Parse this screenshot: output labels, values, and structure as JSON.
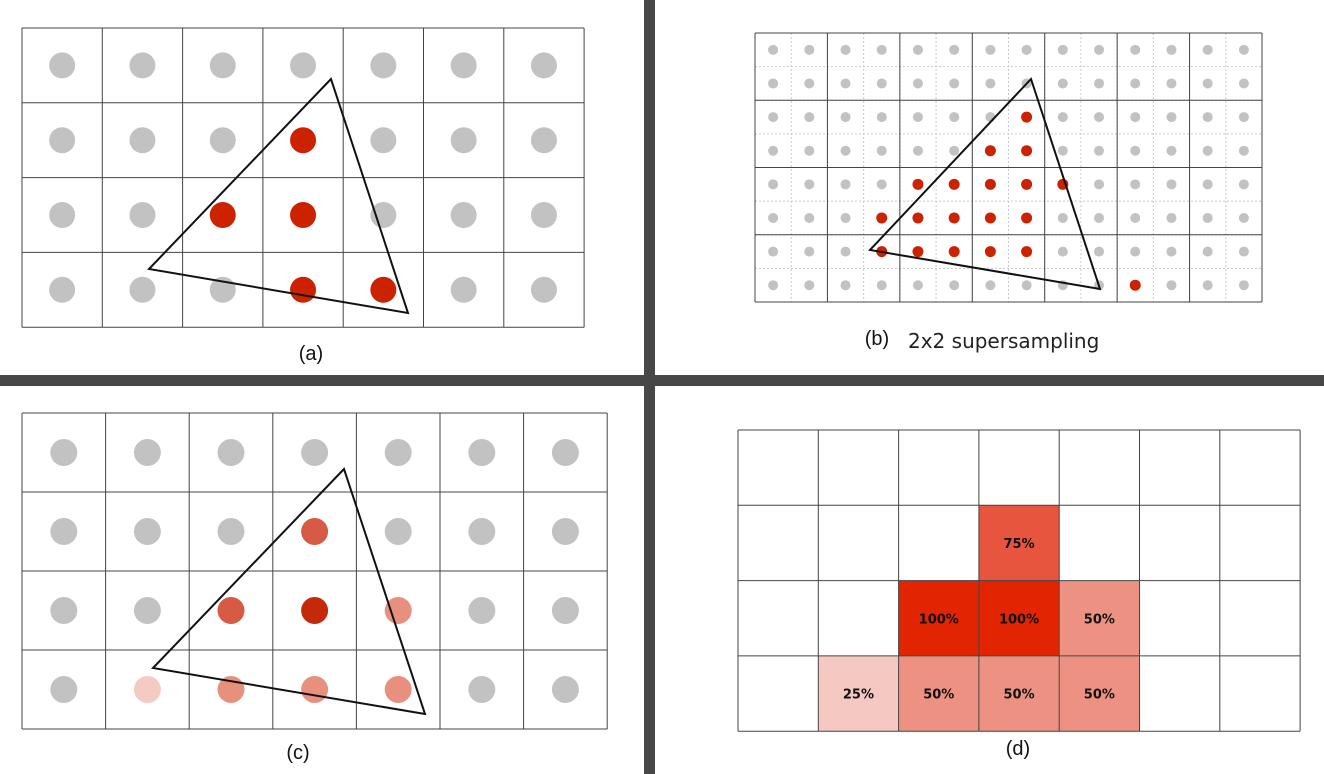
{
  "colors": {
    "divider": "#474747",
    "grid": "#444444",
    "sample_off": "#c2c2c2",
    "sample_in": "#cc2200",
    "fine_grid": "#c8c8c8"
  },
  "panels": {
    "a": {
      "caption": "(a)",
      "rows": 4,
      "cols": 7,
      "triangle_px": "vertices in pixel-cell units",
      "samples": [
        [
          "#c2c2c2",
          "#c2c2c2",
          "#c2c2c2",
          "#c2c2c2",
          "#c2c2c2",
          "#c2c2c2",
          "#c2c2c2"
        ],
        [
          "#c2c2c2",
          "#c2c2c2",
          "#c2c2c2",
          "#cc2200",
          "#c2c2c2",
          "#c2c2c2",
          "#c2c2c2"
        ],
        [
          "#c2c2c2",
          "#c2c2c2",
          "#cc2200",
          "#cc2200",
          "#c2c2c2",
          "#c2c2c2",
          "#c2c2c2"
        ],
        [
          "#c2c2c2",
          "#c2c2c2",
          "#c2c2c2",
          "#cc2200",
          "#cc2200",
          "#c2c2c2",
          "#c2c2c2"
        ]
      ]
    },
    "b": {
      "caption": "(b)",
      "subtitle": "2x2 supersampling",
      "rows": 8,
      "cols": 14,
      "red_samples": [
        [
          2,
          7
        ],
        [
          3,
          6
        ],
        [
          3,
          7
        ],
        [
          4,
          4
        ],
        [
          4,
          5
        ],
        [
          4,
          6
        ],
        [
          4,
          7
        ],
        [
          4,
          8
        ],
        [
          5,
          3
        ],
        [
          5,
          4
        ],
        [
          5,
          5
        ],
        [
          5,
          6
        ],
        [
          5,
          7
        ],
        [
          6,
          3
        ],
        [
          6,
          4
        ],
        [
          6,
          5
        ],
        [
          6,
          6
        ],
        [
          6,
          7
        ],
        [
          7,
          10
        ]
      ]
    },
    "c": {
      "caption": "(c)",
      "rows": 4,
      "cols": 7,
      "samples": [
        [
          "#c2c2c2",
          "#c2c2c2",
          "#c2c2c2",
          "#c2c2c2",
          "#c2c2c2",
          "#c2c2c2",
          "#c2c2c2"
        ],
        [
          "#c2c2c2",
          "#c2c2c2",
          "#c2c2c2",
          "#d65a44",
          "#c2c2c2",
          "#c2c2c2",
          "#c2c2c2"
        ],
        [
          "#c2c2c2",
          "#c2c2c2",
          "#d65a44",
          "#c42a0a",
          "#e8907e",
          "#c2c2c2",
          "#c2c2c2"
        ],
        [
          "#c2c2c2",
          "#f3cbc3",
          "#e8907e",
          "#e8907e",
          "#e8907e",
          "#c2c2c2",
          "#c2c2c2"
        ]
      ]
    },
    "d": {
      "caption": "(d)",
      "rows": 4,
      "cols": 7,
      "cells": [
        {
          "row": 1,
          "col": 3,
          "label": "75%",
          "coverage": 0.75,
          "color": "#e8553e"
        },
        {
          "row": 2,
          "col": 2,
          "label": "100%",
          "coverage": 1.0,
          "color": "#e22500"
        },
        {
          "row": 2,
          "col": 3,
          "label": "100%",
          "coverage": 1.0,
          "color": "#e22500"
        },
        {
          "row": 2,
          "col": 4,
          "label": "50%",
          "coverage": 0.5,
          "color": "#ed9282"
        },
        {
          "row": 3,
          "col": 1,
          "label": "25%",
          "coverage": 0.25,
          "color": "#f5c9c1"
        },
        {
          "row": 3,
          "col": 2,
          "label": "50%",
          "coverage": 0.5,
          "color": "#ed9282"
        },
        {
          "row": 3,
          "col": 3,
          "label": "50%",
          "coverage": 0.5,
          "color": "#ed9282"
        },
        {
          "row": 3,
          "col": 4,
          "label": "50%",
          "coverage": 0.5,
          "color": "#ed9282"
        }
      ]
    }
  }
}
